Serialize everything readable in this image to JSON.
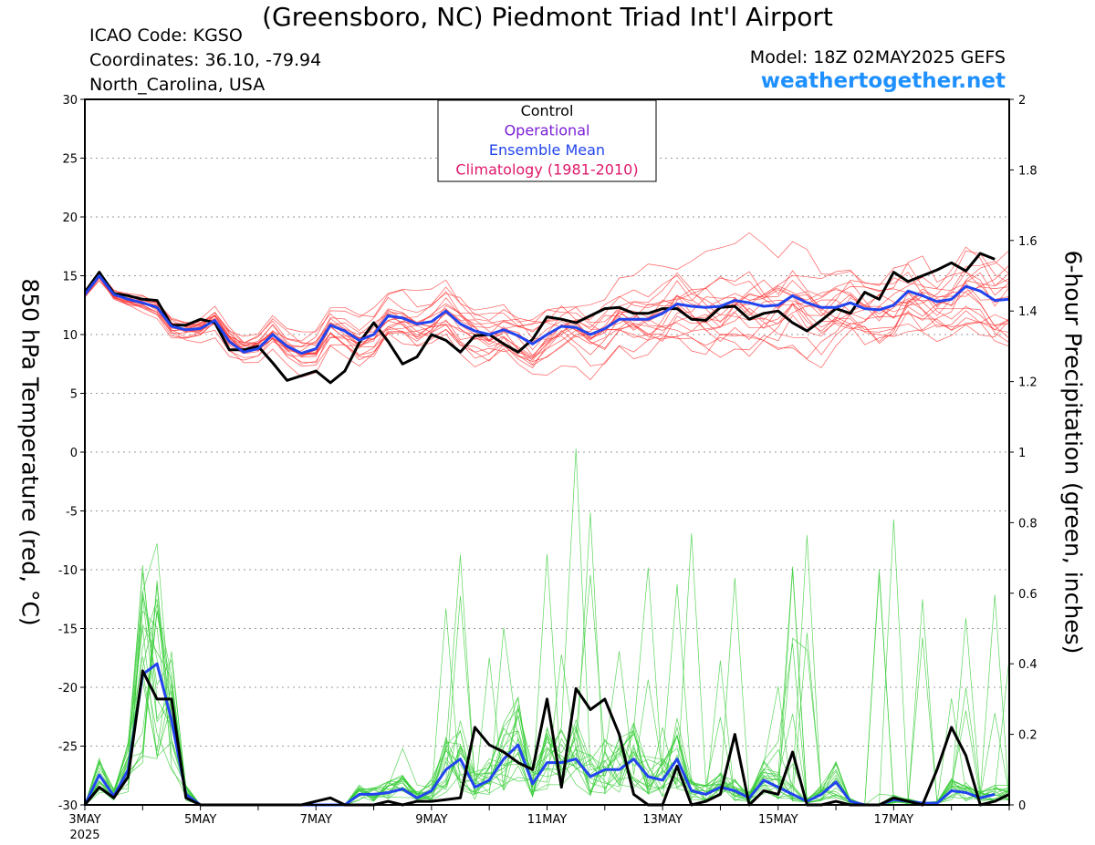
{
  "header": {
    "title": "(Greensboro, NC) Piedmont Triad Int'l Airport",
    "icao": "ICAO Code: KGSO",
    "coordinates": "Coordinates: 36.10, -79.94",
    "region": "North_Carolina, USA",
    "model": "Model: 18Z 02MAY2025 GEFS",
    "site": "weathertogether.net"
  },
  "colors": {
    "members_temp": "#ff3333",
    "members_precip": "#33cc33",
    "control": "#000000",
    "operational": "#7b1fd6",
    "ensemble_mean": "#2244ee",
    "climatology": "#e0186c",
    "site": "#1e90ff"
  },
  "chart_data": {
    "type": "line",
    "x_unit": "6-hour steps starting 00Z 3MAY2025",
    "xlabel": "",
    "ylabel": "850 hPa Temperature (red, °C)",
    "y2label": "6-hour Precipitation (green, inches)",
    "ylim": [
      -30,
      30
    ],
    "y2lim": [
      0,
      2
    ],
    "yticks": [
      "30",
      "25",
      "20",
      "15",
      "10",
      "5",
      "0",
      "-5",
      "-10",
      "-15",
      "-20",
      "-25",
      "-30"
    ],
    "y2ticks": [
      "2",
      "1.8",
      "1.6",
      "1.4",
      "1.2",
      "1",
      "0.8",
      "0.6",
      "0.4",
      "0.2",
      "0"
    ],
    "xticks": [
      {
        "step": 0,
        "label": "3MAY",
        "sub": "2025"
      },
      {
        "step": 8,
        "label": "5MAY",
        "sub": ""
      },
      {
        "step": 16,
        "label": "7MAY",
        "sub": ""
      },
      {
        "step": 24,
        "label": "9MAY",
        "sub": ""
      },
      {
        "step": 32,
        "label": "11MAY",
        "sub": ""
      },
      {
        "step": 40,
        "label": "13MAY",
        "sub": ""
      },
      {
        "step": 48,
        "label": "15MAY",
        "sub": ""
      },
      {
        "step": 56,
        "label": "17MAY",
        "sub": ""
      }
    ],
    "legend": {
      "position": "top-center",
      "entries": [
        {
          "label": "Control",
          "color_key": "control"
        },
        {
          "label": "Operational",
          "color_key": "operational"
        },
        {
          "label": "Ensemble Mean",
          "color_key": "ensemble_mean"
        },
        {
          "label": "Climatology (1981-2010)",
          "color_key": "climatology"
        }
      ]
    },
    "grid": "dotted horizontal",
    "series": [
      {
        "color_key": "control",
        "axis": "left",
        "width": 3,
        "values": [
          13.6,
          15.3,
          13.5,
          13.3,
          13.0,
          12.9,
          10.8,
          10.8,
          11.3,
          11.0,
          8.7,
          8.7,
          9.0,
          7.6,
          6.1,
          6.5,
          6.9,
          5.9,
          6.9,
          9.3,
          11.0,
          9.4,
          7.5,
          8.1,
          10.0,
          9.5,
          8.5,
          9.9,
          10.0,
          9.2,
          8.5,
          9.6,
          11.5,
          11.3,
          11.0,
          11.6,
          12.2,
          12.3,
          11.8,
          11.8,
          12.2,
          12.2,
          11.3,
          11.2,
          12.3,
          12.4,
          11.3,
          11.8,
          12.0,
          11.0,
          10.3,
          11.2,
          12.2,
          11.8,
          13.6,
          13.0,
          15.3,
          14.5,
          15.0,
          15.5,
          16.1,
          15.4,
          16.9,
          16.4
        ]
      },
      {
        "color_key": "ensemble_mean",
        "axis": "left",
        "width": 3,
        "values": [
          13.4,
          15.0,
          13.4,
          13.0,
          12.7,
          12.3,
          10.7,
          10.4,
          10.5,
          11.2,
          9.4,
          8.5,
          8.8,
          10.0,
          9.0,
          8.4,
          8.8,
          10.8,
          10.3,
          9.5,
          10.0,
          11.6,
          11.4,
          10.9,
          11.1,
          12.0,
          10.9,
          10.3,
          10.0,
          10.4,
          9.9,
          9.2,
          10.0,
          10.7,
          10.6,
          10.0,
          10.5,
          11.3,
          11.3,
          11.3,
          11.8,
          12.6,
          12.4,
          12.3,
          12.4,
          12.9,
          12.7,
          12.4,
          12.5,
          13.3,
          12.7,
          12.3,
          12.3,
          12.7,
          12.2,
          12.1,
          12.5,
          13.7,
          13.3,
          12.8,
          13.0,
          14.1,
          13.7,
          12.9,
          13.0
        ]
      },
      {
        "color_key": "ensemble_mean",
        "axis": "right",
        "width": 3,
        "values": [
          0,
          0.085,
          0.025,
          0.1,
          0.37,
          0.4,
          0.24,
          0.03,
          0,
          0,
          0,
          0,
          0,
          0,
          0,
          0,
          0,
          0,
          0,
          0.03,
          0.03,
          0.035,
          0.045,
          0.02,
          0.04,
          0.1,
          0.13,
          0.05,
          0.07,
          0.13,
          0.17,
          0.06,
          0.12,
          0.12,
          0.13,
          0.08,
          0.1,
          0.1,
          0.13,
          0.08,
          0.07,
          0.13,
          0.04,
          0.03,
          0.05,
          0.04,
          0.02,
          0.07,
          0.05,
          0.03,
          0.01,
          0.03,
          0.065,
          0.01,
          0,
          0,
          0.015,
          0.01,
          0.005,
          0.005,
          0.04,
          0.035,
          0.02,
          0.03
        ]
      },
      {
        "color_key": "control",
        "axis": "right",
        "width": 3,
        "values": [
          0,
          0.05,
          0.02,
          0.08,
          0.38,
          0.3,
          0.3,
          0.02,
          0,
          0,
          0,
          0,
          0,
          0,
          0,
          0,
          0.01,
          0.02,
          0,
          0,
          0,
          0.01,
          0,
          0.01,
          0.01,
          0.015,
          0.02,
          0.22,
          0.17,
          0.15,
          0.12,
          0.1,
          0.3,
          0.05,
          0.33,
          0.27,
          0.3,
          0.2,
          0.03,
          0,
          0,
          0.11,
          0,
          0.01,
          0.03,
          0.2,
          0,
          0.04,
          0.03,
          0.15,
          0,
          0,
          0.01,
          0,
          0,
          0,
          0.02,
          0.01,
          0,
          0.1,
          0.22,
          0.14,
          0,
          0.01,
          0.03
        ]
      }
    ]
  }
}
